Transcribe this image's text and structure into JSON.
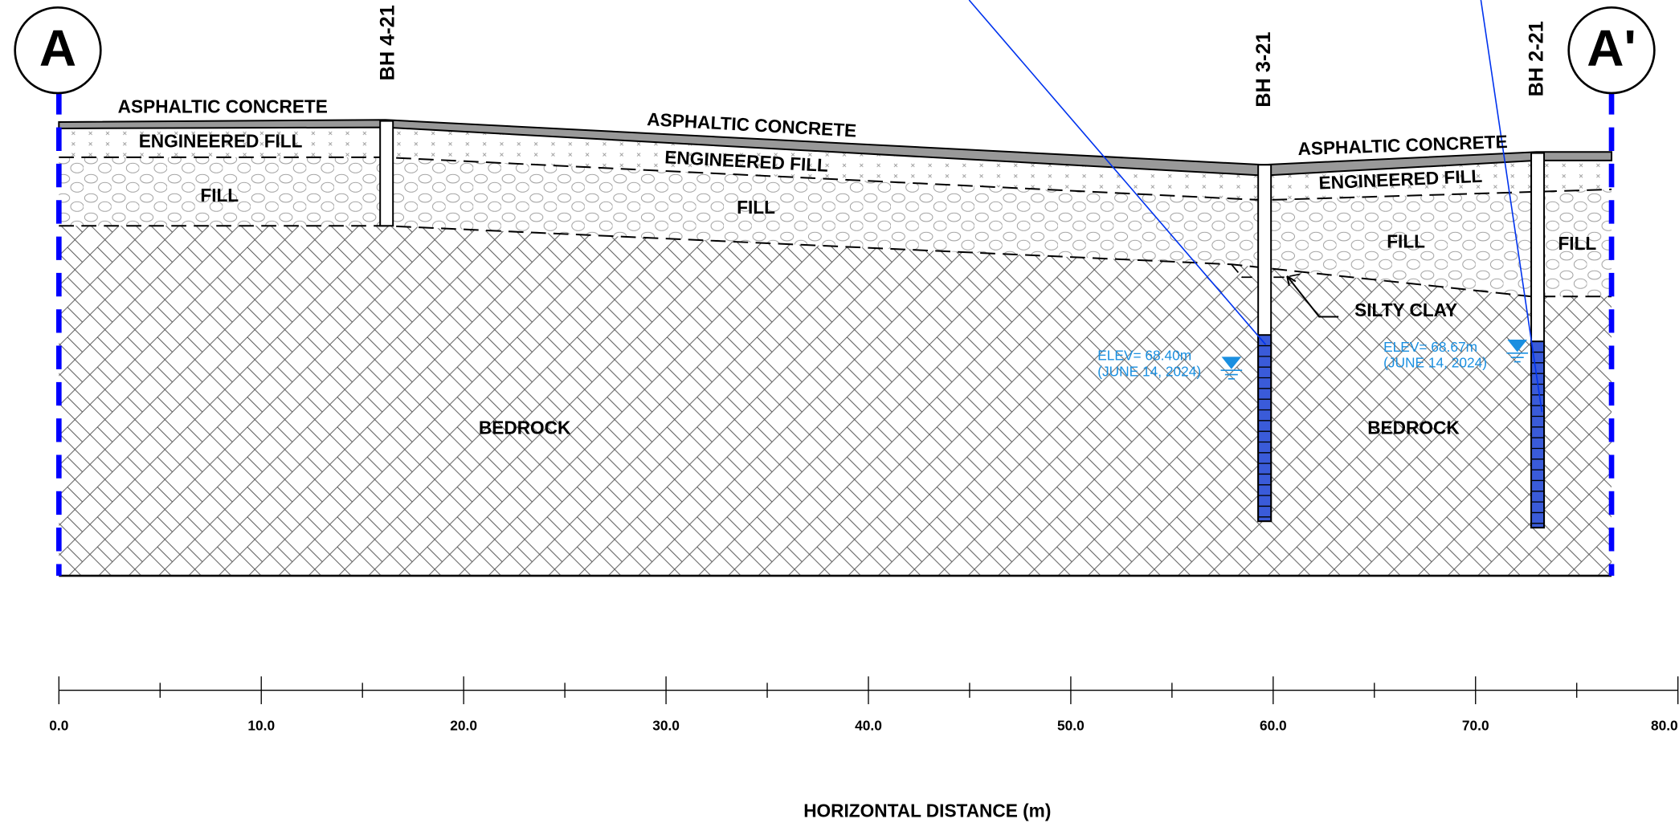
{
  "section": {
    "start_marker": "A",
    "end_marker": "A'"
  },
  "boreholes": [
    {
      "label": "BH 4-21"
    },
    {
      "label": "BH 3-21"
    },
    {
      "label": "BH 2-21"
    }
  ],
  "layer_labels": [
    "ASPHALTIC CONCRETE",
    "ENGINEERED FILL",
    "FILL",
    "ASPHALTIC CONCRETE",
    "ENGINEERED FILL",
    "FILL",
    "ASPHALTIC CONCRETE",
    "ENGINEERED FILL",
    "FILL",
    "FILL",
    "SILTY CLAY",
    "BEDROCK",
    "BEDROCK"
  ],
  "water_levels": [
    {
      "elevation": "ELEV= 68.40m",
      "date": "(JUNE 14, 2024)"
    },
    {
      "elevation": "ELEV= 68.67m",
      "date": "(JUNE 14, 2024)"
    }
  ],
  "axis": {
    "title": "HORIZONTAL DISTANCE (m)",
    "xlim": [
      0,
      80
    ],
    "xticks": [
      {
        "value": 0,
        "label": "0.0"
      },
      {
        "value": 10,
        "label": "10.0"
      },
      {
        "value": 20,
        "label": "20.0"
      },
      {
        "value": 30,
        "label": "30.0"
      },
      {
        "value": 40,
        "label": "40.0"
      },
      {
        "value": 50,
        "label": "50.0"
      },
      {
        "value": 60,
        "label": "60.0"
      },
      {
        "value": 70,
        "label": "70.0"
      },
      {
        "value": 80,
        "label": "80.0"
      }
    ],
    "minor_ticks": [
      5,
      15,
      25,
      35,
      45,
      55,
      65,
      75
    ]
  }
}
